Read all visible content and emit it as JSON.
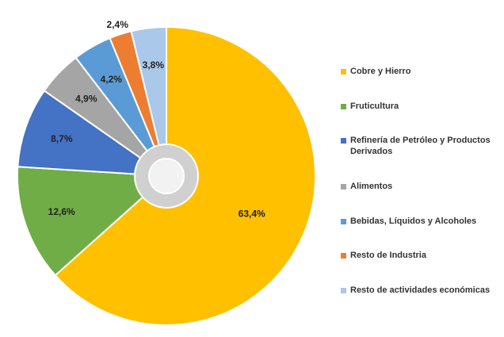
{
  "chart_data": {
    "type": "pie",
    "categories": [
      "Cobre y Hierro",
      "Fruticultura",
      "Refinería de Petróleo y Productos Derivados",
      "Alimentos",
      "Bebidas, Líquidos y Alcoholes",
      "Resto de Industria",
      "Resto de actividades económicas"
    ],
    "values": [
      63.4,
      12.6,
      8.7,
      4.9,
      4.2,
      2.4,
      3.8
    ],
    "value_labels": [
      "63,4%",
      "12,6%",
      "8,7%",
      "4,9%",
      "4,2%",
      "2,4%",
      "3,8%"
    ],
    "colors": [
      "#ffc000",
      "#70ad47",
      "#4472c4",
      "#a5a5a5",
      "#5b9bd5",
      "#ed7d31",
      "#a9c8ea"
    ],
    "legend": "right"
  }
}
